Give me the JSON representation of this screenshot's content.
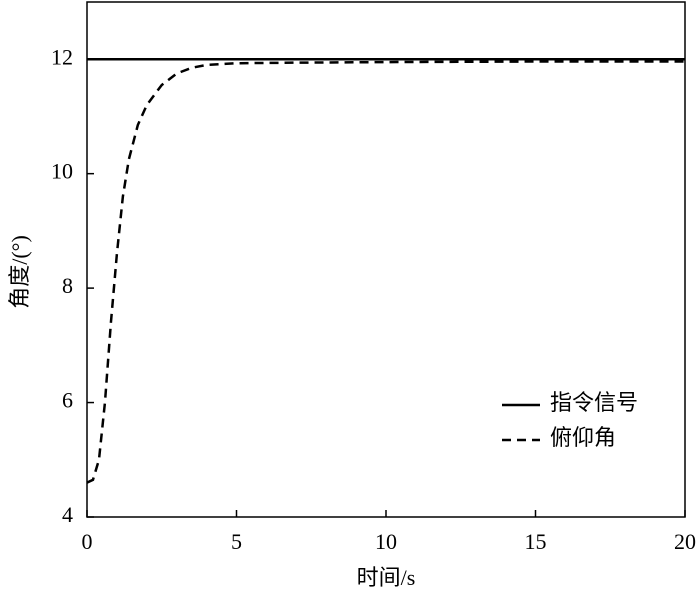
{
  "chart_data": {
    "type": "line",
    "xlabel": "时间/s",
    "ylabel": "角度/(°)",
    "xlim": [
      0,
      20
    ],
    "xticks": [
      0,
      5,
      10,
      15,
      20
    ],
    "ylim": [
      4,
      13
    ],
    "yticks": [
      4,
      6,
      8,
      10,
      12
    ],
    "legend": "lower right",
    "series": [
      {
        "name": "指令信号",
        "color": "#000000",
        "dash": "solid",
        "x": [
          0,
          20
        ],
        "values": [
          12,
          12
        ]
      },
      {
        "name": "俯仰角",
        "color": "#000000",
        "dash": "dashed",
        "x": [
          0,
          0.2,
          0.4,
          0.6,
          0.8,
          1.0,
          1.2,
          1.4,
          1.7,
          2.0,
          2.5,
          3.0,
          3.5,
          4.0,
          5,
          7,
          10,
          15,
          20
        ],
        "values": [
          4.6,
          4.65,
          5.0,
          6.0,
          7.4,
          8.6,
          9.6,
          10.25,
          10.85,
          11.2,
          11.55,
          11.75,
          11.85,
          11.9,
          11.93,
          11.94,
          11.95,
          11.96,
          11.96
        ]
      }
    ]
  }
}
